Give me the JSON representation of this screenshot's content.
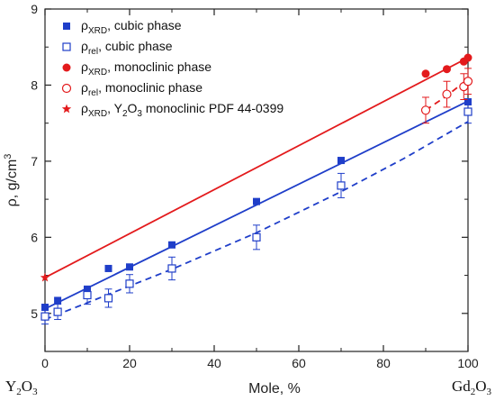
{
  "chart_data": {
    "type": "scatter",
    "xlabel": "Mole, %",
    "ylabel": "ρ, g/cm³",
    "ylabel_parts": {
      "base": "ρ, g/cm",
      "sup": "3"
    },
    "xlim": [
      0,
      100
    ],
    "ylim": [
      4.5,
      9.0
    ],
    "x_ticks": [
      0,
      20,
      40,
      60,
      80,
      100
    ],
    "y_ticks": [
      5,
      6,
      7,
      8,
      9
    ],
    "grid": false,
    "legend_position": "top-left",
    "end_labels": {
      "left": {
        "text": "Y₂O₃",
        "base": "Y",
        "sub": "2",
        "tail": "O",
        "sub2": "3"
      },
      "right": {
        "text": "Gd₂O₃",
        "base": "Gd",
        "sub": "2",
        "tail": "O",
        "sub2": "3"
      }
    },
    "colors": {
      "blue": "#1f3ec9",
      "red": "#e31a1c",
      "axis": "#222222"
    },
    "series": [
      {
        "legend": "ρXRD, cubic phase",
        "legend_parts": {
          "pre": "ρ",
          "sub": "XRD",
          "post": ", cubic phase"
        },
        "marker": "filled-square",
        "color": "#1f3ec9",
        "x": [
          0,
          3,
          10,
          15,
          20,
          30,
          50,
          70,
          100
        ],
        "y": [
          5.08,
          5.17,
          5.31,
          5.59,
          5.61,
          5.9,
          6.47,
          7.01,
          7.78
        ]
      },
      {
        "legend": "ρrel, cubic phase",
        "legend_parts": {
          "pre": "ρ",
          "sub": "rel",
          "post": ", cubic phase"
        },
        "marker": "open-square",
        "color": "#1f3ec9",
        "x": [
          0,
          3,
          10,
          15,
          20,
          30,
          50,
          70,
          100
        ],
        "y": [
          4.96,
          5.02,
          5.24,
          5.2,
          5.39,
          5.59,
          6.0,
          6.68,
          7.65
        ],
        "err": [
          0.1,
          0.1,
          0.12,
          0.12,
          0.12,
          0.15,
          0.16,
          0.16,
          0.15
        ]
      },
      {
        "legend": "ρXRD, monoclinic phase",
        "legend_parts": {
          "pre": "ρ",
          "sub": "XRD",
          "post": ", monoclinic phase"
        },
        "marker": "filled-circle",
        "color": "#e31a1c",
        "x": [
          90,
          95,
          99,
          100
        ],
        "y": [
          8.15,
          8.21,
          8.31,
          8.36
        ]
      },
      {
        "legend": "ρrel, monoclinic phase",
        "legend_parts": {
          "pre": "ρ",
          "sub": "rel",
          "post": ", monoclinic phase"
        },
        "marker": "open-circle",
        "color": "#e31a1c",
        "x": [
          90,
          95,
          99,
          100
        ],
        "y": [
          7.67,
          7.88,
          7.98,
          8.05
        ],
        "err": [
          0.17,
          0.17,
          0.17,
          0.17
        ]
      },
      {
        "legend": "ρXRD, Y2O3 monoclinic PDF 44-0399",
        "legend_parts": {
          "pre": "ρ",
          "sub": "XRD",
          "post": ", Y",
          "sub2": "2",
          "post2": "O",
          "sub3": "3",
          "post3": " monoclinic PDF 44-0399"
        },
        "marker": "star",
        "color": "#e31a1c",
        "x": [
          0
        ],
        "y": [
          5.47
        ]
      }
    ],
    "fit_lines": [
      {
        "series": "ρXRD, cubic phase",
        "style": "solid",
        "color": "#1f3ec9",
        "x": [
          0,
          100
        ],
        "y": [
          5.06,
          7.79
        ]
      },
      {
        "series": "ρrel, cubic phase",
        "style": "dashed",
        "color": "#1f3ec9",
        "x": [
          0,
          10,
          20,
          30,
          50,
          70,
          85,
          100
        ],
        "y": [
          4.92,
          5.14,
          5.36,
          5.58,
          6.06,
          6.6,
          7.04,
          7.52
        ]
      },
      {
        "series": "ρXRD, Y2O3 monoclinic",
        "style": "solid",
        "color": "#e31a1c",
        "x": [
          0,
          100
        ],
        "y": [
          5.47,
          8.36
        ]
      },
      {
        "series": "ρrel, monoclinic phase",
        "style": "dashed",
        "color": "#e31a1c",
        "x": [
          90,
          95,
          100
        ],
        "y": [
          7.67,
          7.86,
          8.08
        ]
      }
    ]
  }
}
